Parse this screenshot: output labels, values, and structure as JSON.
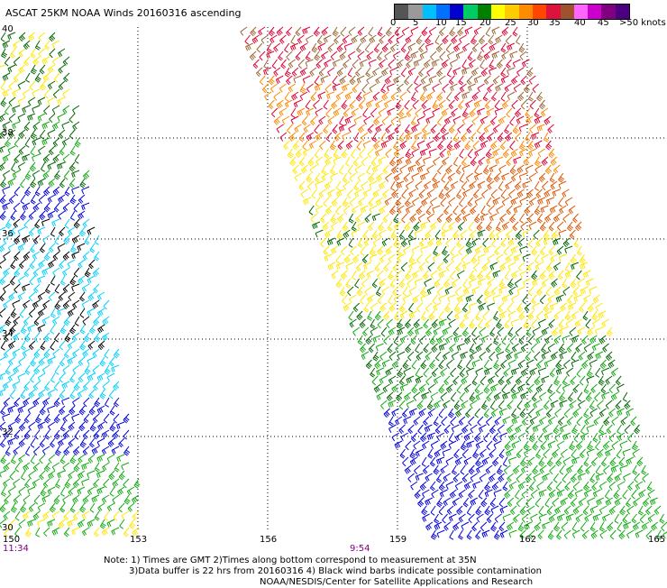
{
  "title": "ASCAT 25KM NOAA Winds 20160316 ascending",
  "colorbar": {
    "colors": [
      "#555555",
      "#9a9a9a",
      "#00bfff",
      "#0070ff",
      "#0000cd",
      "#00cc66",
      "#008000",
      "#ffff00",
      "#ffcc00",
      "#ff8c00",
      "#ff4500",
      "#dc143c",
      "#a0522d",
      "#ff66ff",
      "#cc00cc",
      "#800080",
      "#4b0082"
    ],
    "labels": [
      "0",
      "5",
      "10",
      "15",
      "20",
      "25",
      "30",
      "35",
      "40",
      "45",
      ">50 knots"
    ]
  },
  "lat_labels": [
    "40",
    "38",
    "36",
    "34",
    "32",
    "30"
  ],
  "lon_labels": [
    "150",
    "153",
    "156",
    "159",
    "162",
    "165"
  ],
  "time_labels": [
    "11:34",
    "9:54"
  ],
  "notes": [
    "Note: 1) Times are GMT 2)Times along bottom correspond to measurement at 35N",
    "3)Data buffer is 22 hrs from 20160316 4) Black wind barbs indicate possible contamination",
    "NOAA/NESDIS/Center for Satellite Applications and Research"
  ],
  "barb_colors": {
    "black": "#000000",
    "cyan": "#00d0ff",
    "blue": "#0000dd",
    "green": "#11aa11",
    "dkgreen": "#006600",
    "yellow": "#ffe600",
    "orange": "#ff8800",
    "dkorange": "#dd5500",
    "red": "#dd0033",
    "brown": "#996633"
  }
}
